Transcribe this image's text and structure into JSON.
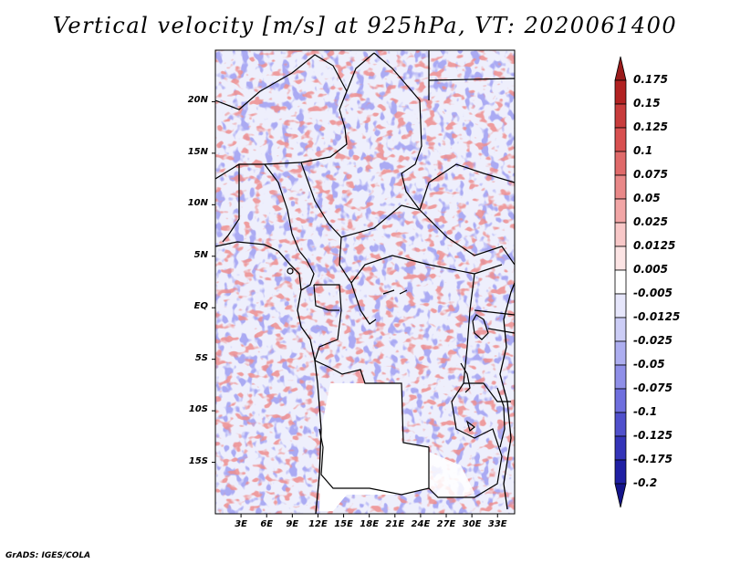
{
  "title": "Vertical velocity [m/s] at 925hPa, VT: 2020061400",
  "credit": "GrADS: IGES/COLA",
  "map": {
    "lat_range": [
      -20,
      25
    ],
    "lon_range": [
      0,
      35
    ],
    "lat_labels": [
      "20N",
      "15N",
      "10N",
      "5N",
      "EQ",
      "5S",
      "10S",
      "15S"
    ],
    "lat_values": [
      20,
      15,
      10,
      5,
      0,
      -5,
      -10,
      -15
    ],
    "lon_labels": [
      "3E",
      "6E",
      "9E",
      "12E",
      "15E",
      "18E",
      "21E",
      "24E",
      "27E",
      "30E",
      "33E"
    ],
    "lon_values": [
      3,
      6,
      9,
      12,
      15,
      18,
      21,
      24,
      27,
      30,
      33
    ]
  },
  "colorbar": {
    "labels": [
      "0.175",
      "0.15",
      "0.125",
      "0.1",
      "0.075",
      "0.05",
      "0.025",
      "0.0125",
      "0.005",
      "-0.005",
      "-0.0125",
      "-0.025",
      "-0.05",
      "-0.075",
      "-0.1",
      "-0.125",
      "-0.175",
      "-0.2"
    ],
    "colors": [
      "#9b1c1c",
      "#b22222",
      "#c83c3c",
      "#d85050",
      "#e06a6a",
      "#e98888",
      "#f2a6a6",
      "#f8c8c8",
      "#fce4e4",
      "#ffffff",
      "#e6e6fb",
      "#cccdf6",
      "#adaef0",
      "#8f8fe8",
      "#6f6fde",
      "#5050cc",
      "#3434b8",
      "#1f1fa3",
      "#14148a"
    ]
  }
}
